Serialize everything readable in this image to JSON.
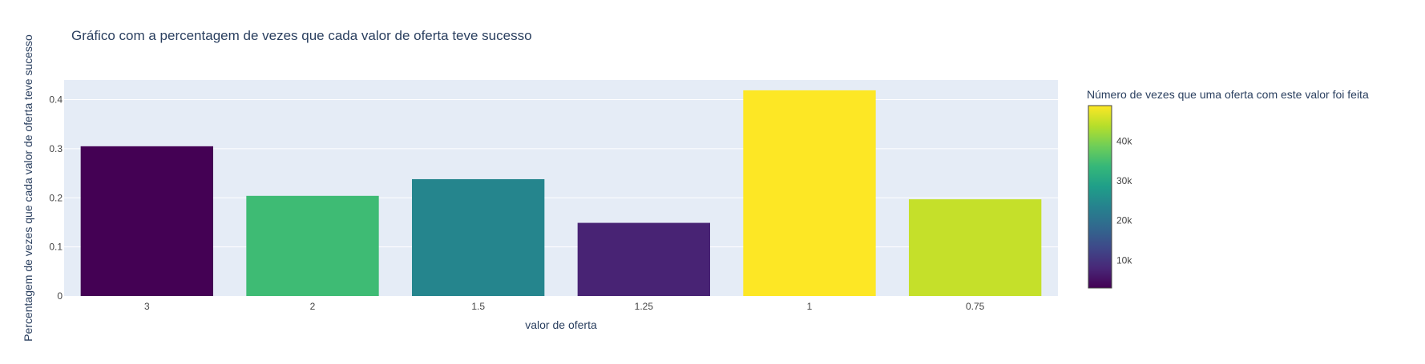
{
  "chart_data": {
    "type": "bar",
    "title": "Gráfico com a percentagem de vezes que cada valor de oferta teve sucesso",
    "xlabel": "valor de oferta",
    "ylabel": "Percentagem de vezes que cada valor de oferta teve sucesso",
    "categories": [
      "3",
      "2",
      "1.5",
      "1.25",
      "1",
      "0.75"
    ],
    "values": [
      0.305,
      0.204,
      0.238,
      0.149,
      0.419,
      0.197
    ],
    "counts": [
      3000,
      34500,
      24000,
      7500,
      49000,
      45000
    ],
    "ylim": [
      0,
      0.44
    ],
    "y_ticks": [
      {
        "value": 0,
        "label": "0"
      },
      {
        "value": 0.1,
        "label": "0.1"
      },
      {
        "value": 0.2,
        "label": "0.2"
      },
      {
        "value": 0.3,
        "label": "0.3"
      },
      {
        "value": 0.4,
        "label": "0.4"
      }
    ],
    "grid": true,
    "colorbar": {
      "title": "Número de vezes que uma oferta com este valor foi feita",
      "colorscale": "Viridis",
      "range": [
        3000,
        49000
      ],
      "ticks": [
        {
          "value": 10000,
          "label": "10k"
        },
        {
          "value": 20000,
          "label": "20k"
        },
        {
          "value": 30000,
          "label": "30k"
        },
        {
          "value": 40000,
          "label": "40k"
        }
      ]
    },
    "colors": {
      "plot_background": "#E5ECF6",
      "grid": "#ffffff",
      "text": "#2a3f5f",
      "tick_text": "#444444"
    }
  }
}
